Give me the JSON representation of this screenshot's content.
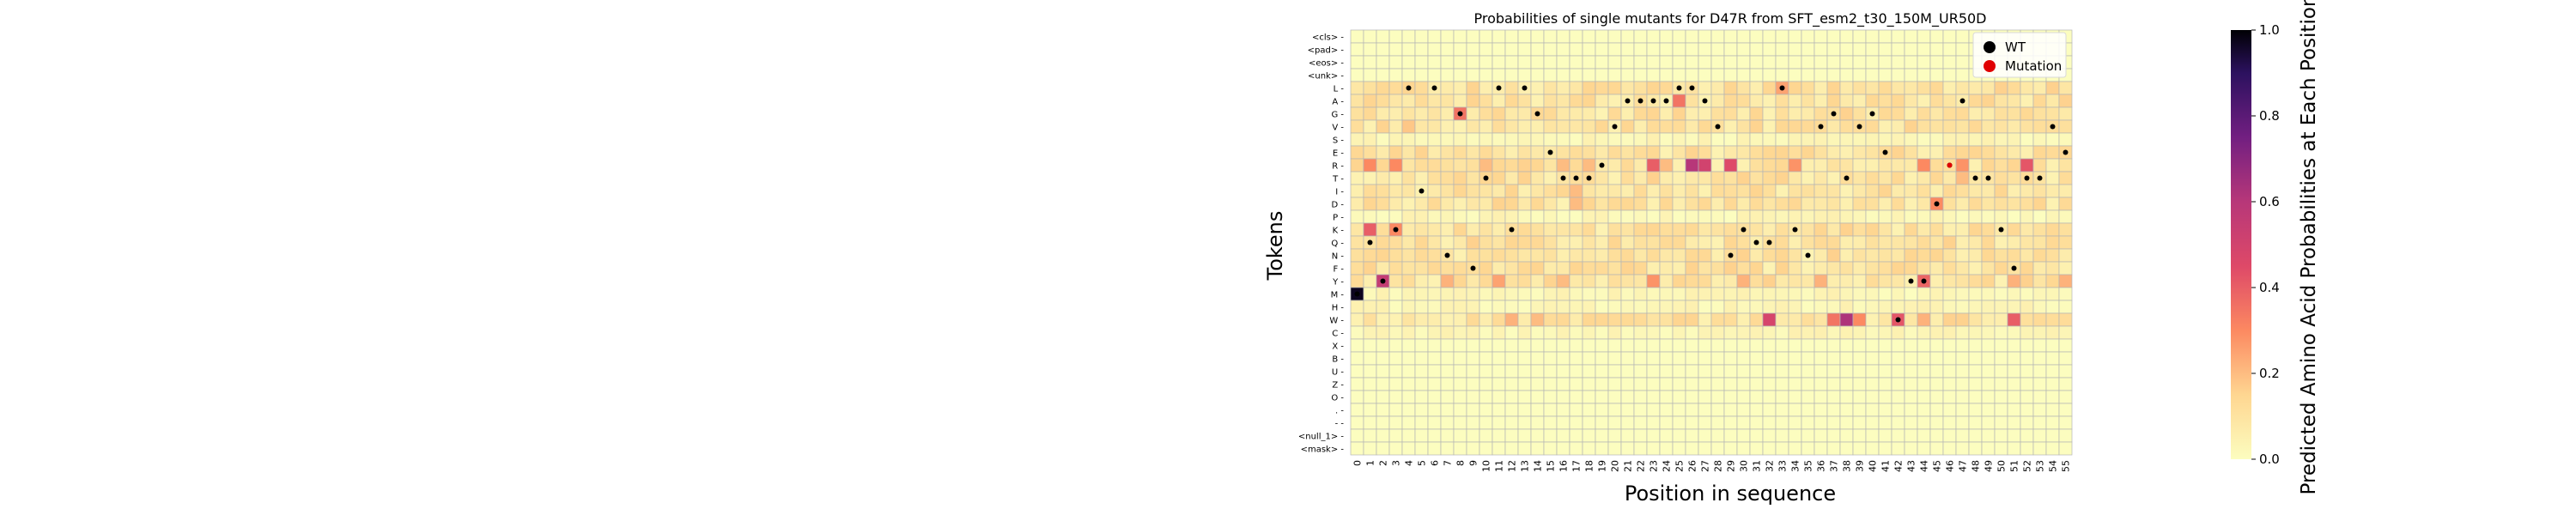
{
  "chart_data": {
    "type": "heatmap",
    "title": "Probabilities of single mutants for D47R from SFT_esm2_t30_150M_UR50D",
    "xlabel": "Position in sequence",
    "ylabel": "Tokens",
    "x_ticks": [
      "0",
      "1",
      "2",
      "3",
      "4",
      "5",
      "6",
      "7",
      "8",
      "9",
      "10",
      "11",
      "12",
      "13",
      "14",
      "15",
      "16",
      "17",
      "18",
      "19",
      "20",
      "21",
      "22",
      "23",
      "24",
      "25",
      "26",
      "27",
      "28",
      "29",
      "30",
      "31",
      "32",
      "33",
      "34",
      "35",
      "36",
      "37",
      "38",
      "39",
      "40",
      "41",
      "42",
      "43",
      "44",
      "45",
      "46",
      "47",
      "48",
      "49",
      "50",
      "51",
      "52",
      "53",
      "54",
      "55"
    ],
    "y_tokens": [
      "<cls>",
      "<pad>",
      "<eos>",
      "<unk>",
      "L",
      "A",
      "G",
      "V",
      "S",
      "E",
      "R",
      "T",
      "I",
      "D",
      "P",
      "K",
      "Q",
      "N",
      "F",
      "Y",
      "M",
      "H",
      "W",
      "C",
      "X",
      "B",
      "U",
      "Z",
      "O",
      ".",
      "-",
      "<null_1>",
      "<mask>"
    ],
    "colorbar": {
      "label": "Predicted Amino Acid Probabilities at Each Position",
      "min": 0.0,
      "max": 1.0,
      "ticks": [
        "0.0",
        "0.2",
        "0.4",
        "0.6",
        "0.8",
        "1.0"
      ],
      "colormap": "magma_r"
    },
    "legend": {
      "placement": "top-right",
      "entries": [
        {
          "label": "WT",
          "color": "#000000"
        },
        {
          "label": "Mutation",
          "color": "#e00000"
        }
      ]
    },
    "wt_tokens": [
      "M",
      "Q",
      "Y",
      "K",
      "L",
      "I",
      "L",
      "N",
      "G",
      "F",
      "T",
      "L",
      "K",
      "L",
      "G",
      "E",
      "T",
      "T",
      "T",
      "R",
      "V",
      "A",
      "A",
      "A",
      "A",
      "L",
      "L",
      "A",
      "V",
      "N",
      "K",
      "Q",
      "Q",
      "L",
      "K",
      "N",
      "V",
      "G",
      "T",
      "V",
      "G",
      "E",
      "W",
      "Y",
      "Y",
      "D",
      "R",
      "A",
      "T",
      "T",
      "K",
      "F",
      "T",
      "T",
      "V",
      "E"
    ],
    "mutation": {
      "position": 46,
      "from": "D",
      "to": "R"
    },
    "probabilities": {
      "M": {
        "0": 0.97
      },
      "Y": {
        "2": 0.55,
        "44": 0.38,
        "23": 0.28,
        "11": 0.25,
        "7": 0.22,
        "16": 0.2,
        "25": 0.15,
        "30": 0.22,
        "36": 0.22,
        "51": 0.22,
        "55": 0.22
      },
      "W": {
        "32": 0.48,
        "38": 0.62,
        "42": 0.42,
        "51": 0.4,
        "12": 0.22,
        "14": 0.2,
        "44": 0.22,
        "37": 0.35,
        "39": 0.3
      },
      "R": {
        "1": 0.3,
        "3": 0.3,
        "23": 0.4,
        "26": 0.6,
        "27": 0.5,
        "29": 0.45,
        "34": 0.28,
        "44": 0.3,
        "47": 0.28,
        "52": 0.42,
        "24": 0.2,
        "16": 0.2,
        "18": 0.2,
        "10": 0.2
      },
      "K": {
        "1": 0.4,
        "3": 0.3,
        "40": 0.15
      },
      "D": {
        "45": 0.3,
        "17": 0.2
      },
      "A": {
        "25": 0.35,
        "18": 0.15
      },
      "G": {
        "8": 0.35
      },
      "L": {
        "33": 0.25,
        "4": 0.15
      },
      "V": {
        "4": 0.18,
        "53": 0.12
      },
      "I": {
        "17": 0.2
      },
      "T": {
        "47": 0.2
      },
      "F": {
        "17": 0.15,
        "3": 0.12
      },
      "Q": {
        "1": 0.1
      }
    },
    "grid": true
  }
}
